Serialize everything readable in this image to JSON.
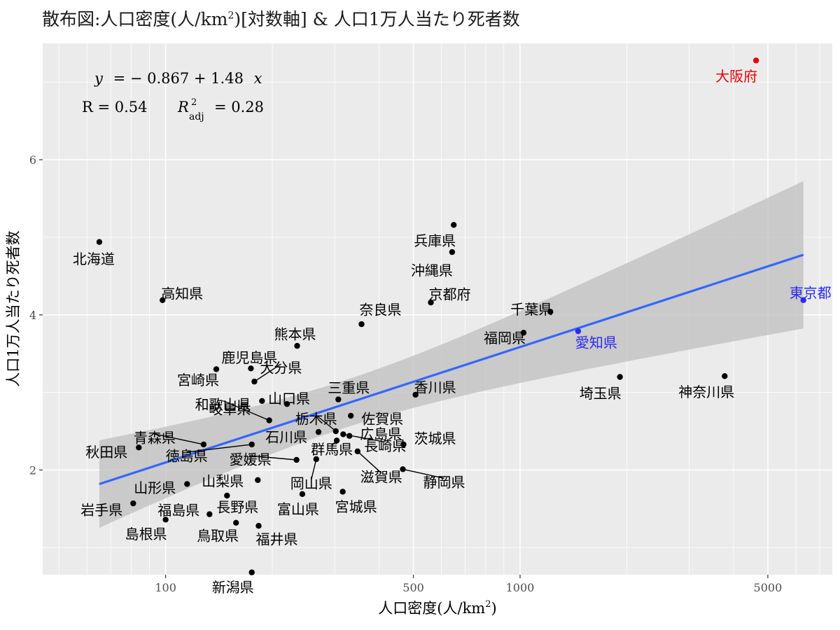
{
  "chart_data": {
    "type": "scatter",
    "title": "散布図:人口密度(人/km²)[対数軸] & 人口1万人当たり死者数",
    "title_parts": {
      "pre": "散布図:人口密度(人/km",
      "sup": "2",
      "post": ")[対数軸] & 人口1万人当たり死者数"
    },
    "xlabel": "人口密度(人/km²)",
    "xlabel_parts": {
      "pre": "人口密度(人/km",
      "sup": "2",
      "post": ")"
    },
    "ylabel": "人口1万人当たり死者数",
    "x_scale": "log10",
    "xlim": [
      45,
      7600
    ],
    "ylim": [
      0.65,
      7.5
    ],
    "x_ticks": [
      100,
      500,
      1000,
      5000
    ],
    "y_ticks": [
      2,
      4,
      6
    ],
    "colors": {
      "default": "#000000",
      "highlight_red": "#e8000b",
      "highlight_blue": "#2b2bee",
      "fit_line": "#3366ff",
      "band": "#bdbdbd",
      "panel": "#ebebeb"
    },
    "annotation": {
      "equation": "y = −0.867 + 1.48 x",
      "eq_y": "y",
      "eq_rest": "=  − 0.867 + 1.48",
      "eq_x": "x",
      "r_text": "R  =  0.54",
      "r2_label": "R",
      "r2_sup": "2",
      "r2_sub": "adj",
      "r2_value": "=  0.28"
    },
    "fit": {
      "intercept": -0.867,
      "slope": 1.48
    },
    "points": [
      {
        "name": "北海道",
        "x": 65,
        "y": 4.94
      },
      {
        "name": "高知県",
        "x": 98,
        "y": 4.19
      },
      {
        "name": "秋田県",
        "x": 84,
        "y": 2.29
      },
      {
        "name": "岩手県",
        "x": 81,
        "y": 1.57
      },
      {
        "name": "青森県",
        "x": 128,
        "y": 2.33
      },
      {
        "name": "山形県",
        "x": 115,
        "y": 1.82
      },
      {
        "name": "島根県",
        "x": 100,
        "y": 1.36
      },
      {
        "name": "福島県",
        "x": 133,
        "y": 1.43
      },
      {
        "name": "鹿児島県",
        "x": 174,
        "y": 3.31
      },
      {
        "name": "宮崎県",
        "x": 139,
        "y": 3.3
      },
      {
        "name": "大分県",
        "x": 178,
        "y": 3.14
      },
      {
        "name": "熊本県",
        "x": 235,
        "y": 3.6
      },
      {
        "name": "山口県",
        "x": 220,
        "y": 2.85
      },
      {
        "name": "岐阜県",
        "x": 187,
        "y": 2.89
      },
      {
        "name": "和歌山県",
        "x": 196,
        "y": 2.64
      },
      {
        "name": "徳島県",
        "x": 175,
        "y": 2.33
      },
      {
        "name": "愛媛県",
        "x": 234,
        "y": 2.13
      },
      {
        "name": "山梨県",
        "x": 182,
        "y": 1.87
      },
      {
        "name": "長野県",
        "x": 149,
        "y": 1.67
      },
      {
        "name": "鳥取県",
        "x": 158,
        "y": 1.32
      },
      {
        "name": "福井県",
        "x": 183,
        "y": 1.28
      },
      {
        "name": "新潟県",
        "x": 175,
        "y": 0.68
      },
      {
        "name": "富山県",
        "x": 243,
        "y": 1.69
      },
      {
        "name": "岡山県",
        "x": 266,
        "y": 2.14
      },
      {
        "name": "石川県",
        "x": 270,
        "y": 2.49
      },
      {
        "name": "宮城県",
        "x": 316,
        "y": 1.72
      },
      {
        "name": "三重県",
        "x": 307,
        "y": 2.91
      },
      {
        "name": "栃木県",
        "x": 302,
        "y": 2.5
      },
      {
        "name": "群馬県",
        "x": 304,
        "y": 2.38
      },
      {
        "name": "佐賀県",
        "x": 333,
        "y": 2.7
      },
      {
        "name": "広島県",
        "x": 330,
        "y": 2.44
      },
      {
        "name": "長崎県",
        "x": 317,
        "y": 2.46
      },
      {
        "name": "滋賀県",
        "x": 348,
        "y": 2.24
      },
      {
        "name": "奈良県",
        "x": 357,
        "y": 3.88
      },
      {
        "name": "茨城県",
        "x": 469,
        "y": 2.33
      },
      {
        "name": "静岡県",
        "x": 467,
        "y": 2.01
      },
      {
        "name": "香川県",
        "x": 507,
        "y": 2.97
      },
      {
        "name": "兵庫県",
        "x": 650,
        "y": 5.16
      },
      {
        "name": "沖縄県",
        "x": 643,
        "y": 4.81
      },
      {
        "name": "京都府",
        "x": 560,
        "y": 4.16
      },
      {
        "name": "福岡県",
        "x": 1023,
        "y": 3.77
      },
      {
        "name": "千葉県",
        "x": 1218,
        "y": 4.04
      },
      {
        "name": "愛知県",
        "x": 1458,
        "y": 3.79
      },
      {
        "name": "埼玉県",
        "x": 1913,
        "y": 3.2
      },
      {
        "name": "神奈川県",
        "x": 3778,
        "y": 3.21
      },
      {
        "name": "大阪府",
        "x": 4631,
        "y": 7.28
      },
      {
        "name": "東京都",
        "x": 6300,
        "y": 4.19
      }
    ]
  }
}
